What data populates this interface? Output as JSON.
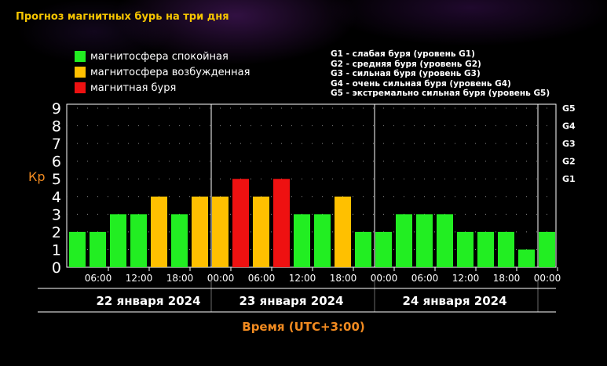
{
  "title": "Прогноз магнитных бурь на три дня",
  "legend": [
    {
      "label": "магнитосфера спокойная",
      "color": "#22ee22"
    },
    {
      "label": "магнитосфера возбужденная",
      "color": "#ffc000"
    },
    {
      "label": "магнитная буря",
      "color": "#ee1111"
    }
  ],
  "g_levels": [
    "G1 - слабая буря (уровень G1)",
    "G2 - средняя буря (уровень G2)",
    "G3 - сильная буря (уровень G3)",
    "G4 - очень сильная буря (уровень G4)",
    "G5 - экстремально сильная буря (уровень G5)"
  ],
  "chart_data": {
    "type": "bar",
    "ylabel": "Кр",
    "xlabel": "Время (UTC+3:00)",
    "ylim": [
      0,
      9
    ],
    "yticks": [
      0,
      1,
      2,
      3,
      4,
      5,
      6,
      7,
      8,
      9
    ],
    "right_ticks": [
      {
        "kp": 5,
        "label": "G1"
      },
      {
        "kp": 6,
        "label": "G2"
      },
      {
        "kp": 7,
        "label": "G3"
      },
      {
        "kp": 8,
        "label": "G4"
      },
      {
        "kp": 9,
        "label": "G5"
      }
    ],
    "time_ticks": [
      "06:00",
      "12:00",
      "18:00",
      "00:00"
    ],
    "days": [
      {
        "label": "22 января 2024",
        "values": [
          2,
          2,
          3,
          3,
          4,
          3,
          4
        ]
      },
      {
        "label": "23 января 2024",
        "values": [
          4,
          5,
          4,
          5,
          3,
          3,
          4,
          2
        ]
      },
      {
        "label": "24 января 2024",
        "values": [
          2,
          3,
          3,
          3,
          2,
          2,
          2,
          1
        ]
      },
      {
        "label": "",
        "values": [
          2
        ]
      }
    ],
    "thresholds": {
      "quiet_max": 3,
      "active": 4,
      "storm_min": 5
    },
    "grid": "dotted"
  }
}
